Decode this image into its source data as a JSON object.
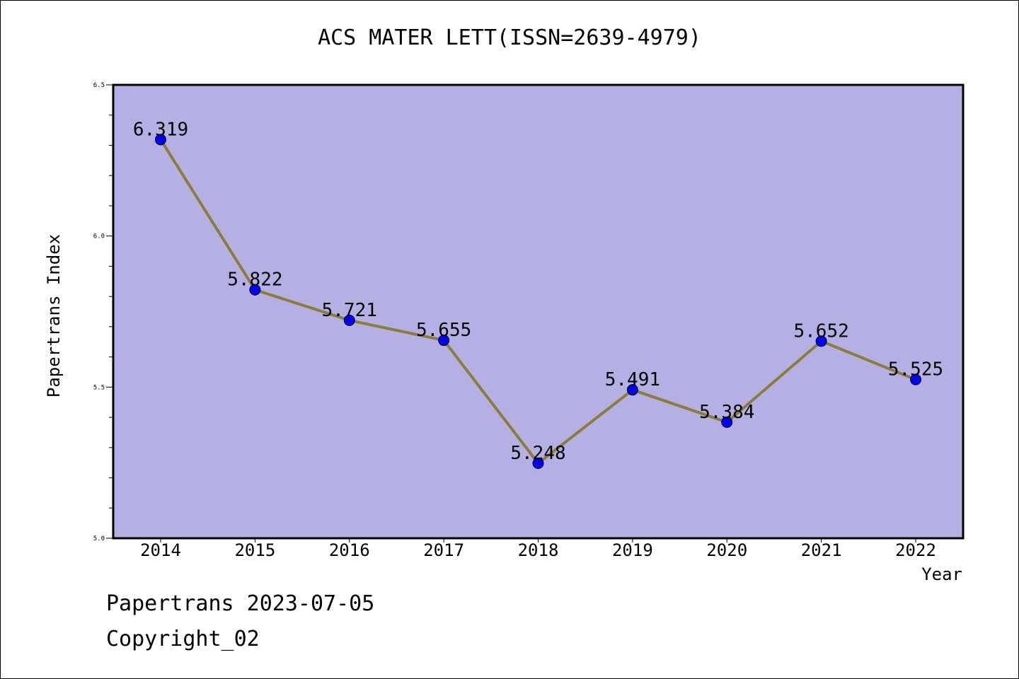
{
  "chart_data": {
    "type": "line",
    "title": "ACS MATER LETT(ISSN=2639-4979)",
    "xlabel": "Year",
    "ylabel": "Papertrans Index",
    "categories": [
      "2014",
      "2015",
      "2016",
      "2017",
      "2018",
      "2019",
      "2020",
      "2021",
      "2022"
    ],
    "values": [
      6.319,
      5.822,
      5.721,
      5.655,
      5.248,
      5.491,
      5.384,
      5.652,
      5.525
    ],
    "value_labels": [
      "6.319",
      "5.822",
      "5.721",
      "5.655",
      "5.248",
      "5.491",
      "5.384",
      "5.652",
      "5.525"
    ],
    "ylim": [
      5.0,
      6.5
    ],
    "y_ticks": [
      "5.0",
      "5.5",
      "6.0",
      "6.5"
    ],
    "grid": false,
    "colors": {
      "plot_background": "#b5b0e3",
      "line": "#8c7d3a",
      "marker": "#0000ff"
    }
  },
  "footer": {
    "date_line": "Papertrans 2023-07-05",
    "copyright": "Copyright_02"
  }
}
